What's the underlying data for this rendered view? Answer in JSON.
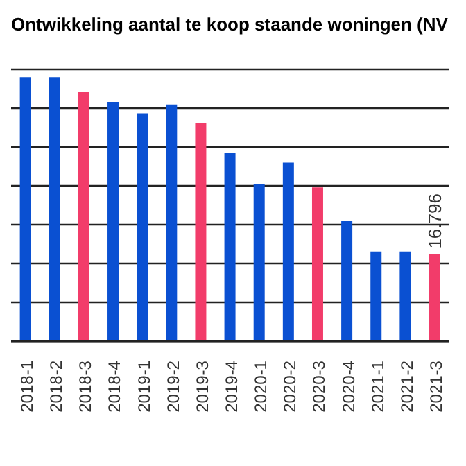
{
  "chart_data": {
    "type": "bar",
    "title": "Ontwikkeling aantal te koop staande woningen (NV",
    "categories": [
      "2018-1",
      "2018-2",
      "2018-3",
      "2018-4",
      "2019-1",
      "2019-2",
      "2019-3",
      "2019-4",
      "2020-1",
      "2020-2",
      "2020-3",
      "2020-4",
      "2021-1",
      "2021-2",
      "2021-3"
    ],
    "values": [
      51000,
      51000,
      48100,
      46200,
      44000,
      45700,
      42200,
      36400,
      30400,
      34500,
      29700,
      23200,
      17300,
      17300,
      16796
    ],
    "colors": [
      "#0a50d2",
      "#0a50d2",
      "#f23c6a",
      "#0a50d2",
      "#0a50d2",
      "#0a50d2",
      "#f23c6a",
      "#0a50d2",
      "#0a50d2",
      "#0a50d2",
      "#f23c6a",
      "#0a50d2",
      "#0a50d2",
      "#0a50d2",
      "#f23c6a"
    ],
    "value_labels": [
      null,
      null,
      null,
      null,
      null,
      null,
      null,
      null,
      null,
      null,
      null,
      null,
      null,
      null,
      "16.796"
    ],
    "grid": "y"
  }
}
